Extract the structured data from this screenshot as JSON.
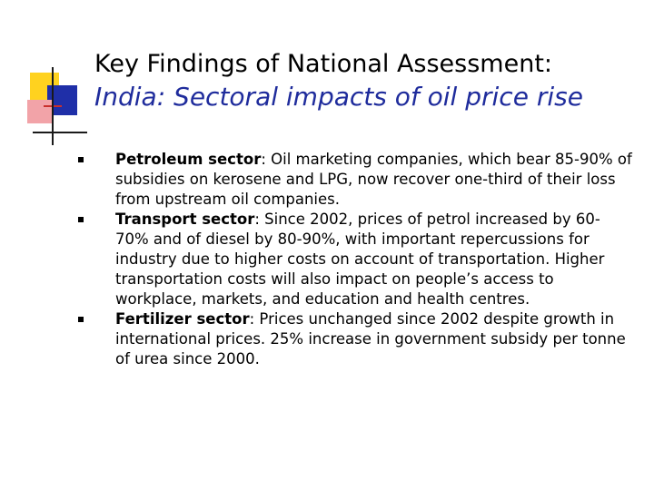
{
  "title": {
    "line1": "Key Findings of National Assessment:",
    "line2": "India: Sectoral impacts of oil price rise"
  },
  "bullets": [
    {
      "term": "Petroleum sector",
      "text": ": Oil marketing companies, which bear 85-90% of subsidies on kerosene and LPG, now recover one-third of their loss from upstream oil companies."
    },
    {
      "term": "Transport sector",
      "text": ": Since 2002, prices of petrol increased by 60-70% and of diesel by 80-90%, with important repercussions for industry due to higher costs on account of transportation. Higher transportation costs will also impact on people’s access to workplace, markets, and education and health centres."
    },
    {
      "term": "Fertilizer sector",
      "text": ": Prices unchanged since 2002 despite growth in international prices. 25% increase in government subsidy per tonne of urea since 2000."
    }
  ],
  "colors": {
    "title_accent": "#1f2c9c",
    "logo_yellow": "#ffd21f",
    "logo_blue": "#1f2fa8",
    "logo_pink": "#f2a3a8"
  }
}
